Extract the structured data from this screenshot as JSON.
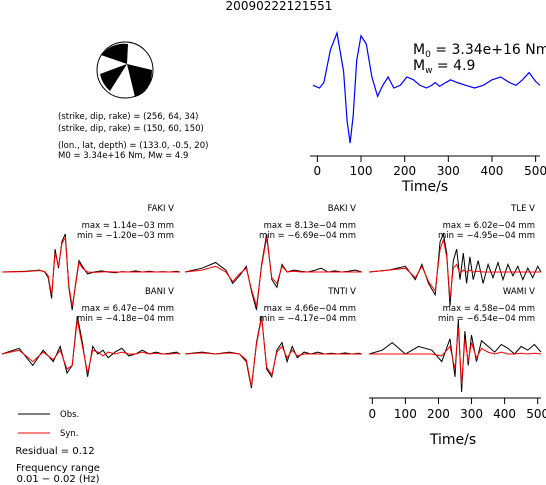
{
  "chart_data": {
    "type": "line",
    "title": "20090222121551",
    "focal_mechanism": {
      "nodal_planes": [
        "(strike, dip, rake) = (256, 64, 34)",
        "(strike, dip, rake) = (150, 60, 150)"
      ],
      "location": "(lon., lat, depth) = (133.0, -0.5, 20)",
      "moment_line": "M0 = 3.34e+16 Nm, Mw = 4.9"
    },
    "moment_rate": {
      "m0_label": "M",
      "m0_sub": "0",
      "m0_value": " = 3.34e+16 Nm",
      "mw_label": "M",
      "mw_sub": "w",
      "mw_value": " = 4.9",
      "xlabel": "Time/s",
      "xticks": [
        0,
        100,
        200,
        300,
        400,
        500
      ],
      "xlim": [
        -10,
        510
      ],
      "color": "#0000ff",
      "x": [
        -10,
        5,
        15,
        30,
        45,
        60,
        68,
        75,
        82,
        90,
        100,
        112,
        125,
        138,
        150,
        162,
        175,
        190,
        205,
        220,
        235,
        250,
        262,
        270,
        280,
        290,
        305,
        320,
        340,
        360,
        380,
        400,
        420,
        440,
        455,
        470,
        485,
        500,
        510
      ],
      "y": [
        0.05,
        0.0,
        0.1,
        0.7,
        1.0,
        0.3,
        -0.6,
        -1.0,
        -0.5,
        0.5,
        0.95,
        0.8,
        0.2,
        -0.15,
        0.05,
        0.2,
        0.0,
        0.05,
        0.2,
        0.15,
        0.05,
        0.0,
        0.05,
        0.1,
        0.03,
        0.08,
        0.15,
        0.1,
        0.05,
        0.0,
        0.05,
        0.15,
        0.2,
        0.1,
        0.05,
        0.15,
        0.28,
        0.12,
        0.05
      ]
    },
    "stations": [
      {
        "name": "FAKI V",
        "max": "max = 1.14e−03 mm",
        "min": "min = −1.20e−03 mm",
        "x": [
          -10,
          60,
          100,
          115,
          125,
          135,
          145,
          155,
          165,
          175,
          185,
          195,
          205,
          215,
          225,
          240,
          260,
          280,
          300,
          320,
          340,
          360,
          380,
          400,
          420,
          440,
          460,
          480,
          500,
          510
        ],
        "obs": [
          0.0,
          0.02,
          0.05,
          0.0,
          -0.15,
          -0.7,
          0.6,
          0.1,
          0.8,
          1.0,
          -0.4,
          -1.0,
          -0.3,
          0.3,
          0.15,
          -0.05,
          0.0,
          0.03,
          0.0,
          -0.02,
          0.01,
          0.0,
          0.03,
          0.0,
          0.02,
          0.0,
          0.01,
          0.0,
          0.02,
          0.0
        ],
        "syn": [
          0.0,
          0.01,
          0.04,
          0.01,
          -0.1,
          -0.6,
          0.5,
          0.15,
          0.75,
          0.9,
          -0.35,
          -0.9,
          -0.35,
          0.25,
          0.1,
          0.0,
          -0.01,
          0.0,
          0.01,
          0.0,
          0.0,
          0.0,
          0.0,
          0.0,
          0.0,
          0.0,
          0.0,
          0.0,
          0.0,
          0.0
        ]
      },
      {
        "name": "BAKI V",
        "max": "max = 8.13e−04 mm",
        "min": "min = −6.69e−04 mm",
        "x": [
          -10,
          40,
          80,
          110,
          130,
          150,
          170,
          185,
          200,
          215,
          230,
          245,
          260,
          275,
          290,
          310,
          330,
          350,
          370,
          390,
          410,
          430,
          450,
          470,
          490,
          510
        ],
        "obs": [
          0.0,
          0.1,
          0.25,
          0.05,
          -0.3,
          -0.1,
          0.15,
          -0.5,
          -1.0,
          0.2,
          1.0,
          -0.2,
          -0.4,
          0.2,
          0.0,
          0.05,
          0.02,
          0.0,
          0.04,
          0.1,
          0.0,
          0.03,
          0.0,
          0.02,
          0.05,
          0.0
        ],
        "syn": [
          0.0,
          0.05,
          0.15,
          0.0,
          -0.25,
          -0.05,
          0.1,
          -0.45,
          -0.9,
          0.15,
          0.9,
          -0.15,
          -0.3,
          0.15,
          0.0,
          0.02,
          0.0,
          0.0,
          0.0,
          0.0,
          0.0,
          0.0,
          0.0,
          0.0,
          0.0,
          0.0
        ]
      },
      {
        "name": "TLE V",
        "max": "max = 6.02e−04 mm",
        "min": "min = −4.95e−04 mm",
        "x": [
          -10,
          50,
          100,
          130,
          150,
          170,
          190,
          205,
          215,
          225,
          235,
          245,
          255,
          265,
          275,
          285,
          295,
          305,
          320,
          335,
          350,
          365,
          380,
          395,
          410,
          425,
          440,
          455,
          470,
          485,
          500,
          510
        ],
        "obs": [
          0.0,
          0.05,
          0.15,
          -0.2,
          0.2,
          -0.3,
          -0.6,
          0.8,
          1.0,
          0.5,
          -0.9,
          0.3,
          0.6,
          -0.2,
          0.5,
          -0.3,
          0.4,
          -0.2,
          0.3,
          -0.3,
          0.2,
          -0.15,
          0.25,
          -0.2,
          0.2,
          -0.1,
          0.15,
          -0.2,
          0.1,
          -0.15,
          0.15,
          0.0
        ],
        "syn": [
          0.0,
          0.05,
          0.1,
          -0.15,
          0.15,
          -0.25,
          -0.5,
          0.6,
          0.85,
          0.4,
          -0.7,
          0.1,
          0.2,
          -0.05,
          0.05,
          0.0,
          0.05,
          0.0,
          0.02,
          0.0,
          0.0,
          0.0,
          0.0,
          0.0,
          0.0,
          0.0,
          0.0,
          0.0,
          0.0,
          0.0,
          0.0,
          0.0
        ]
      },
      {
        "name": "BANI V",
        "max": "max = 6.47e−04 mm",
        "min": "min = −4.18e−04 mm",
        "x": [
          -10,
          40,
          80,
          110,
          140,
          160,
          180,
          195,
          210,
          225,
          240,
          255,
          270,
          285,
          300,
          320,
          340,
          360,
          380,
          400,
          420,
          440,
          460,
          480,
          500,
          510
        ],
        "obs": [
          0.0,
          0.15,
          -0.3,
          0.1,
          -0.2,
          0.2,
          -0.5,
          -0.3,
          1.0,
          0.3,
          -0.6,
          0.2,
          0.0,
          0.1,
          -0.1,
          0.05,
          0.15,
          -0.05,
          0.0,
          0.1,
          0.0,
          0.05,
          0.0,
          0.02,
          0.05,
          0.0
        ],
        "syn": [
          0.0,
          0.1,
          -0.2,
          0.05,
          -0.15,
          0.1,
          -0.4,
          -0.3,
          0.9,
          0.2,
          -0.5,
          0.1,
          0.05,
          -0.05,
          0.05,
          0.0,
          0.05,
          0.0,
          0.0,
          0.05,
          0.0,
          0.02,
          0.0,
          0.0,
          0.02,
          0.0
        ]
      },
      {
        "name": "TNTI V",
        "max": "max = 4.66e−04 mm",
        "min": "min = −4.17e−04 mm",
        "x": [
          -10,
          40,
          80,
          120,
          150,
          170,
          185,
          200,
          215,
          230,
          245,
          260,
          275,
          290,
          305,
          320,
          340,
          360,
          380,
          400,
          420,
          440,
          460,
          480,
          500,
          510
        ],
        "obs": [
          0.0,
          0.05,
          0.0,
          0.05,
          0.0,
          -0.2,
          -0.9,
          0.3,
          1.0,
          -0.4,
          -0.6,
          0.1,
          0.3,
          -0.2,
          0.2,
          -0.1,
          0.05,
          0.0,
          0.05,
          0.0,
          0.02,
          0.0,
          0.03,
          0.0,
          0.02,
          0.0
        ],
        "syn": [
          0.0,
          0.03,
          0.0,
          0.03,
          0.0,
          -0.15,
          -0.85,
          0.25,
          0.95,
          -0.35,
          -0.55,
          0.05,
          0.2,
          -0.1,
          0.1,
          -0.05,
          0.0,
          0.0,
          0.0,
          0.0,
          0.0,
          0.0,
          0.0,
          0.0,
          0.0,
          0.0
        ]
      },
      {
        "name": "WAMI V",
        "max": "max = 4.58e−04 mm",
        "min": "min = −6.54e−04 mm",
        "x": [
          -10,
          30,
          60,
          100,
          140,
          180,
          210,
          235,
          250,
          260,
          270,
          280,
          290,
          300,
          315,
          330,
          350,
          370,
          390,
          410,
          430,
          450,
          470,
          490,
          510
        ],
        "obs": [
          0.0,
          0.1,
          0.3,
          0.0,
          0.2,
          0.1,
          -0.2,
          0.4,
          -0.6,
          0.9,
          -1.0,
          0.6,
          -0.3,
          0.5,
          -0.2,
          0.35,
          0.2,
          0.05,
          0.25,
          0.15,
          0.0,
          0.2,
          0.1,
          0.25,
          0.05
        ],
        "syn": [
          0.0,
          0.0,
          0.0,
          0.0,
          0.0,
          0.0,
          -0.05,
          0.2,
          -0.4,
          0.7,
          -0.8,
          0.4,
          -0.2,
          0.3,
          -0.1,
          0.15,
          0.05,
          0.0,
          0.05,
          0.0,
          0.0,
          0.02,
          0.0,
          0.02,
          0.0
        ]
      }
    ],
    "waveform_xlabel": "Time/s",
    "waveform_xticks": [
      0,
      100,
      200,
      300,
      400,
      500
    ],
    "waveform_xlim": [
      -10,
      510
    ],
    "legend": {
      "obs": "Obs.",
      "syn": "Syn.",
      "obs_color": "#000000",
      "syn_color": "#ff0000"
    },
    "residual": "Residual = 0.12",
    "frequency_title": "Frequency range",
    "frequency_value": "0.01 − 0.02 (Hz)"
  }
}
